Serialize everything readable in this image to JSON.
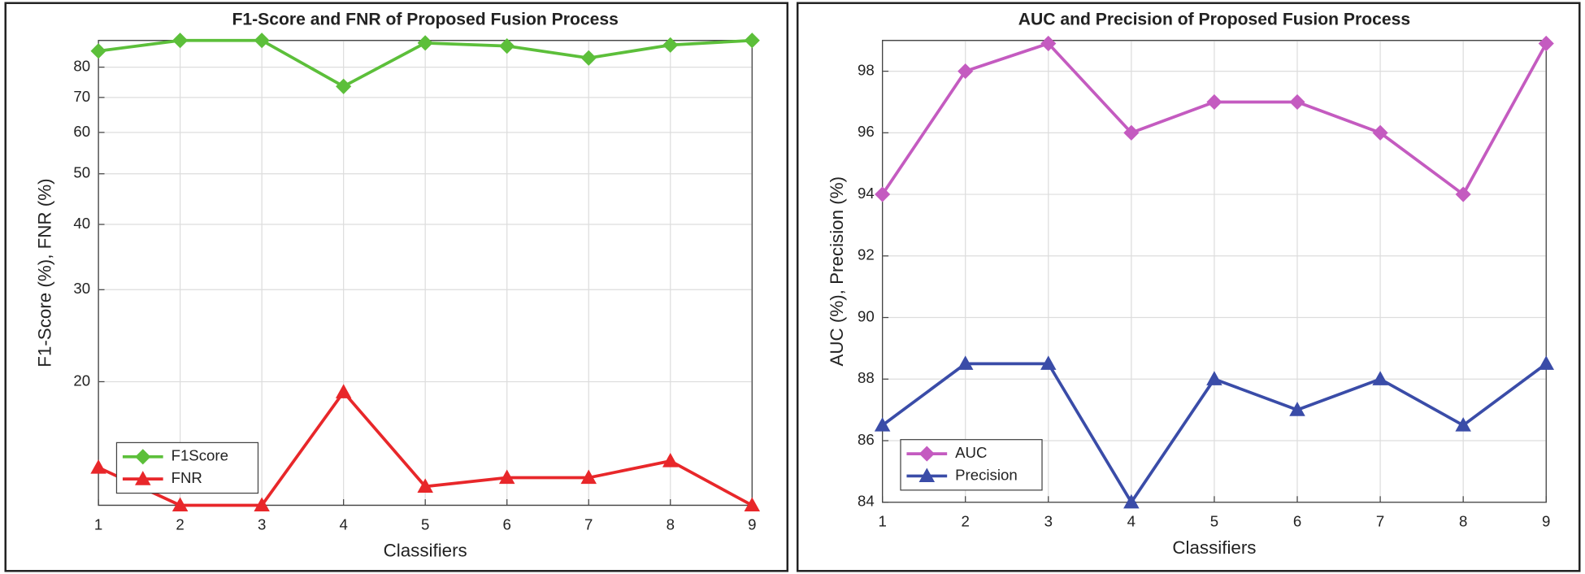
{
  "chart_data": [
    {
      "type": "line",
      "title": "F1-Score and FNR of Proposed Fusion Process",
      "x_label": "Classifiers",
      "y_label": "F1-Score (%), FNR (%)",
      "x": [
        1,
        2,
        3,
        4,
        5,
        6,
        7,
        8,
        9
      ],
      "xlim": [
        1,
        9
      ],
      "xticks": [
        1,
        2,
        3,
        4,
        5,
        6,
        7,
        8,
        9
      ],
      "ylim": [
        11.6,
        90
      ],
      "yticks": [
        20,
        30,
        40,
        50,
        60,
        70,
        80
      ],
      "yscale": "log",
      "grid": true,
      "legend": "lower left",
      "series": [
        {
          "name": "F1Score",
          "color": "#5cbf3a",
          "marker": "diamond",
          "values": [
            85.9,
            90,
            90,
            73.5,
            89,
            87.8,
            83.3,
            88.2,
            90
          ]
        },
        {
          "name": "FNR",
          "color": "#e8272a",
          "marker": "triangle",
          "values": [
            13.7,
            11.6,
            11.6,
            19.1,
            12.6,
            13.1,
            13.1,
            14.1,
            11.6
          ]
        }
      ]
    },
    {
      "type": "line",
      "title": "AUC and Precision of Proposed Fusion Process",
      "x_label": "Classifiers",
      "y_label": "AUC (%), Precision (%)",
      "x": [
        1,
        2,
        3,
        4,
        5,
        6,
        7,
        8,
        9
      ],
      "xlim": [
        1,
        9
      ],
      "xticks": [
        1,
        2,
        3,
        4,
        5,
        6,
        7,
        8,
        9
      ],
      "ylim": [
        84,
        99
      ],
      "yticks": [
        84,
        86,
        88,
        90,
        92,
        94,
        96,
        98
      ],
      "grid": true,
      "legend": "lower left",
      "series": [
        {
          "name": "AUC",
          "color": "#c45bc0",
          "marker": "diamond",
          "values": [
            94,
            98,
            98.9,
            96,
            97,
            97,
            96,
            94,
            98.9
          ]
        },
        {
          "name": "Precision",
          "color": "#3a4ca8",
          "marker": "triangle",
          "values": [
            86.5,
            88.5,
            88.5,
            84,
            88,
            87,
            88,
            86.5,
            88.5
          ]
        }
      ]
    }
  ]
}
